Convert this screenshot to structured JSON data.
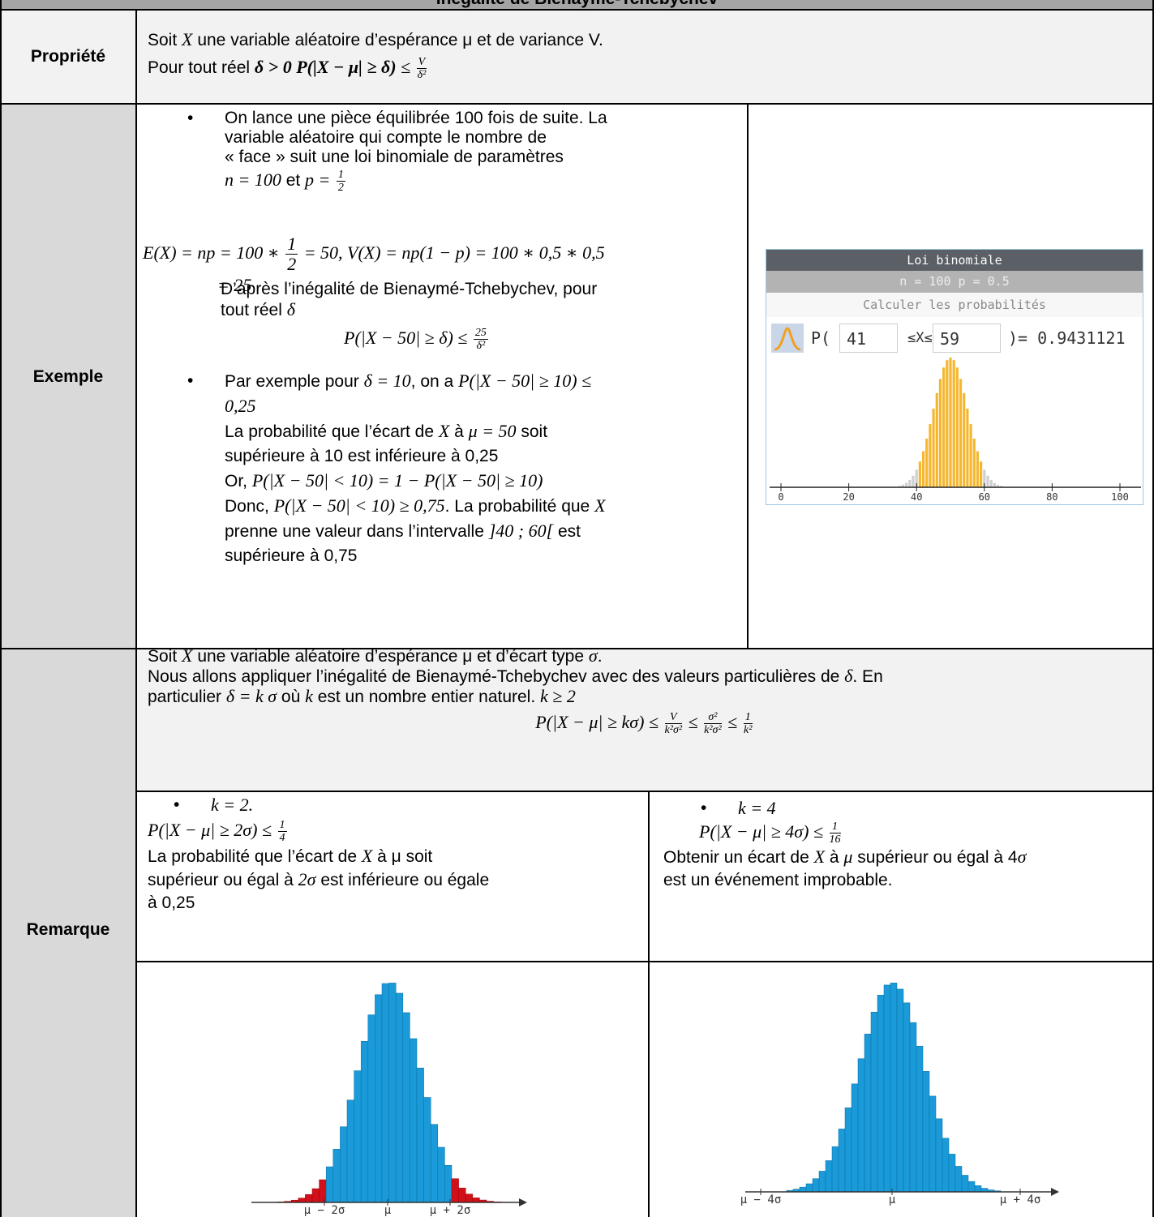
{
  "header": {
    "title": "Inégalité de Bienaymé-Tchebychev"
  },
  "propriete": {
    "label": "Propriété",
    "lines": [
      [
        "Soit ",
        {
          "m": "X"
        },
        " une variable aléatoire d’espérance μ et de variance V."
      ],
      [
        "Pour tout réel ",
        {
          "b": "δ > 0  P(|X − μ| ≥  δ)"
        },
        {
          "m": " ≤ "
        },
        {
          "f": [
            "V",
            "δ²"
          ]
        }
      ]
    ]
  },
  "exemple": {
    "label": "Exemple",
    "item1": [
      "On lance une pièce équilibrée 100 fois de suite. La",
      "variable aléatoire qui compte le nombre de",
      "« face » suit une loi binomiale de paramètres",
      [
        {
          "m": "n = 100"
        },
        " et ",
        {
          "m": "p = "
        },
        {
          "f": [
            "1",
            "2"
          ]
        }
      ]
    ],
    "formula": [
      [
        {
          "m": "E(X) = np = 100 ∗ "
        },
        {
          "f": [
            "1",
            "2"
          ]
        },
        {
          "m": " = 50, V(X) = np(1 − p) = 100 ∗ 0,5 ∗ 0,5"
        }
      ],
      [
        {
          "m": "= 25"
        }
      ]
    ],
    "text": [
      "D’après l’inégalité de Bienaymé-Tchebychev, pour",
      [
        "tout réel ",
        {
          "m": "δ"
        }
      ],
      [
        {
          "m": "P(|X − 50| ≥  δ) ≤ "
        },
        {
          "f": [
            "25",
            "δ²"
          ]
        }
      ]
    ],
    "item2": [
      [
        "Par exemple pour ",
        {
          "m": "δ = 10"
        },
        ", on a ",
        {
          "m": "P(|X − 50| ≥  10) ≤"
        }
      ],
      [
        {
          "m": "0,25"
        }
      ],
      [
        "La probabilité que l’écart de ",
        {
          "m": "X"
        },
        " à ",
        {
          "m": "μ = 50"
        },
        " soit"
      ],
      "supérieure à 10 est inférieure à 0,25",
      [
        "Or, ",
        {
          "m": "P(|X − 50| <  10) = 1 −  P(|X − 50| ≥  10)"
        }
      ],
      [
        "Donc, ",
        {
          "m": "P(|X − 50| <  10) ≥ 0,75"
        },
        ". La probabilité que ",
        {
          "m": "X"
        }
      ],
      [
        "prenne une valeur dans l’intervalle ",
        {
          "m": "]40 ; 60["
        },
        " est"
      ],
      "supérieure à 0,75"
    ],
    "widget": {
      "title": "Loi binomiale",
      "params": "n = 100 p = 0.5",
      "action": "Calculer les probabilités",
      "p_open": "P(",
      "lower": 41,
      "between": "≤X≤",
      "upper": 59,
      "result": ")= 0.9431121",
      "xticks": [
        0,
        20,
        40,
        60,
        80,
        100
      ]
    }
  },
  "remarque": {
    "label": "Remarque",
    "intro": [
      [
        "Soit ",
        {
          "m": "X"
        },
        " une variable aléatoire d’espérance μ et d’écart type ",
        {
          "m": "σ"
        },
        "."
      ],
      [
        "Nous allons appliquer l’inégalité de Bienaymé-Tchebychev avec des valeurs particulières de ",
        {
          "m": "δ"
        },
        ". En"
      ],
      [
        "particulier ",
        {
          "m": "δ = k σ"
        },
        " où ",
        {
          "m": "k"
        },
        " est un nombre entier naturel. ",
        {
          "m": "k ≥ 2"
        }
      ],
      [
        {
          "m": "P(|X − μ| ≥  kσ) ≤ "
        },
        {
          "f": [
            "V",
            "k²σ²"
          ]
        },
        {
          "m": " ≤ "
        },
        {
          "f": [
            "σ²",
            "k²σ²"
          ]
        },
        {
          "m": " ≤ "
        },
        {
          "f": [
            "1",
            "k²"
          ]
        }
      ]
    ],
    "case1": [
      [
        {
          "m": "k = 2."
        }
      ],
      [
        {
          "m": "P(|X − μ| ≥  2σ) ≤ "
        },
        {
          "f": [
            "1",
            "4"
          ]
        }
      ],
      [
        "La probabilité que l’écart de ",
        {
          "m": "X"
        },
        " à μ soit"
      ],
      [
        "supérieur ou égal à ",
        {
          "m": "2σ"
        },
        " est inférieure ou égale"
      ],
      "à 0,25"
    ],
    "case2": [
      [
        {
          "m": "k = 4"
        }
      ],
      [
        {
          "m": "P(|X − μ| ≥  4σ) ≤ "
        },
        {
          "f": [
            "1",
            "16"
          ]
        }
      ],
      [
        "Obtenir un écart de ",
        {
          "m": "X"
        },
        " à ",
        {
          "m": "μ"
        },
        " supérieur ou égal à 4",
        {
          "m": "σ"
        }
      ],
      "est un événement improbable."
    ],
    "chart1_labels": [
      "μ − 2σ",
      "μ",
      "μ + 2σ"
    ],
    "chart2_labels": [
      "μ − 4σ",
      "μ",
      "μ + 4σ"
    ]
  }
}
